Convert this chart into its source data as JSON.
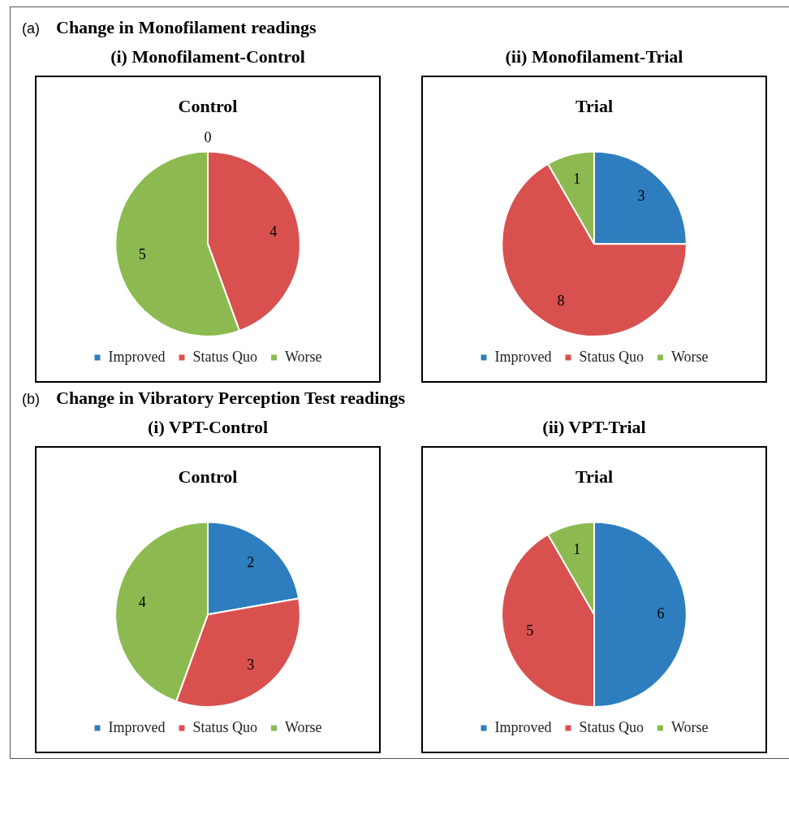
{
  "chart_data": [
    {
      "type": "pie",
      "annotations": [
        "(a)",
        "Change in Monofilament readings"
      ],
      "subtitle": "(i) Monofilament-Control",
      "title": "Control",
      "categories": [
        "Improved",
        "Status Quo",
        "Worse"
      ],
      "values": [
        0,
        4,
        5
      ],
      "value_labels": [
        "0",
        "4",
        "5"
      ],
      "colors": [
        "#2e7ebf",
        "#d9514e",
        "#8cba51"
      ],
      "legend": "bottom"
    },
    {
      "type": "pie",
      "subtitle": "(ii) Monofilament-Trial",
      "title": "Trial",
      "categories": [
        "Improved",
        "Status Quo",
        "Worse"
      ],
      "values": [
        3,
        8,
        1
      ],
      "colors": [
        "#2e7ebf",
        "#d9514e",
        "#8cba51"
      ],
      "data_labels": true,
      "legend": "bottom"
    },
    {
      "type": "pie",
      "annotations": [
        "(b)",
        "Change in Vibratory Perception Test readings"
      ],
      "subtitle": "(i) VPT-Control",
      "title": "Control",
      "categories": [
        "Improved",
        "Status Quo",
        "Worse"
      ],
      "values": [
        2,
        3,
        4
      ],
      "colors": [
        "#2e7ebf",
        "#d9514e",
        "#8cba51"
      ],
      "data_labels": true,
      "legend": "bottom"
    },
    {
      "type": "pie",
      "subtitle": "(ii) VPT-Trial",
      "title": "Trial",
      "categories": [
        "Improved",
        "Status Quo",
        "Worse"
      ],
      "values": [
        6,
        5,
        1
      ],
      "colors": [
        "#2e7ebf",
        "#d9514e",
        "#8cba51"
      ],
      "data_labels": true,
      "legend": "bottom"
    }
  ]
}
